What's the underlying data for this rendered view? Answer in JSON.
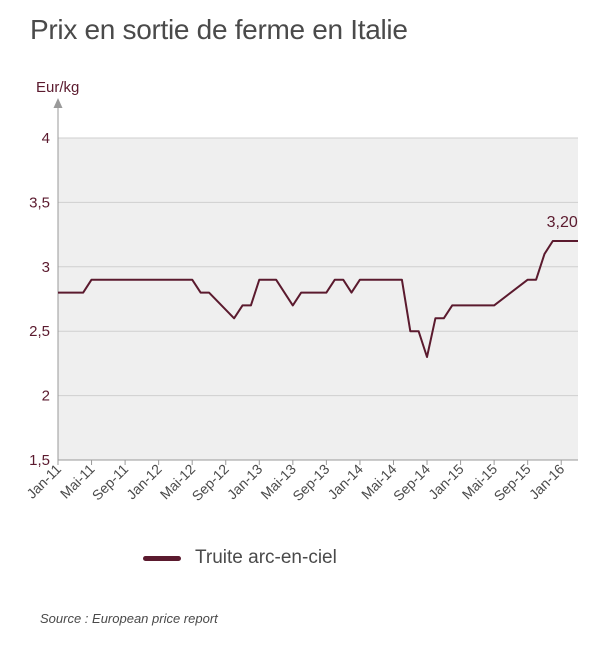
{
  "title": "Prix en sortie de ferme en Italie",
  "source": "Source : European price report",
  "colors": {
    "series": "#5b1a2e",
    "plot_bg": "#efefef",
    "grid": "#cfcfcf",
    "axis_text": "#4a4a4a"
  },
  "chart_data": {
    "type": "line",
    "ylabel": "Eur/kg",
    "ylim": [
      1.5,
      4
    ],
    "yticks": [
      "1,5",
      "2",
      "2,5",
      "3",
      "3,5",
      "4"
    ],
    "ytick_values": [
      1.5,
      2,
      2.5,
      3,
      3.5,
      4
    ],
    "grid": true,
    "legend_placement": "bottom",
    "x_tick_labels": [
      "Jan-11",
      "Mai-11",
      "Sep-11",
      "Jan-12",
      "Mai-12",
      "Sep-12",
      "Jan-13",
      "Mai-13",
      "Sep-13",
      "Jan-14",
      "Mai-14",
      "Sep-14",
      "Jan-15",
      "Mai-15",
      "Sep-15",
      "Jan-16"
    ],
    "x_tick_months": [
      0,
      4,
      8,
      12,
      16,
      20,
      24,
      28,
      32,
      36,
      40,
      44,
      48,
      52,
      56,
      60
    ],
    "x_range_months": [
      0,
      62
    ],
    "series": [
      {
        "name": "Truite arc-en-ciel",
        "x_months": [
          0,
          3,
          4,
          16,
          17,
          18,
          21,
          22,
          23,
          24,
          26,
          28,
          29,
          32,
          33,
          34,
          35,
          36,
          37,
          41,
          42,
          43,
          44,
          45,
          46,
          47,
          52,
          56,
          57,
          58,
          59,
          60,
          62
        ],
        "values": [
          2.8,
          2.8,
          2.9,
          2.9,
          2.8,
          2.8,
          2.6,
          2.7,
          2.7,
          2.9,
          2.9,
          2.7,
          2.8,
          2.8,
          2.9,
          2.9,
          2.8,
          2.9,
          2.9,
          2.9,
          2.5,
          2.5,
          2.3,
          2.6,
          2.6,
          2.7,
          2.7,
          2.9,
          2.9,
          3.1,
          3.2,
          3.2,
          3.2
        ]
      }
    ],
    "annotations": [
      {
        "text": "3,20",
        "x_month": 60,
        "value": 3.2
      }
    ]
  }
}
